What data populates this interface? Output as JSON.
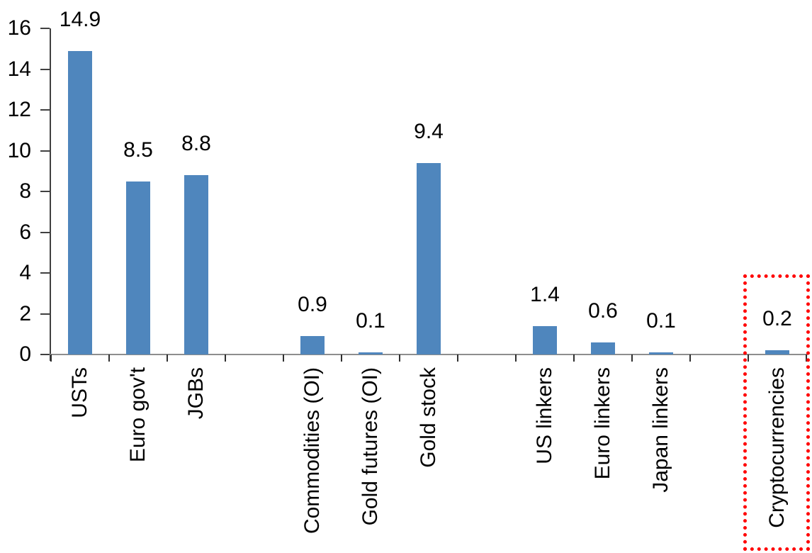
{
  "chart_data": {
    "type": "bar",
    "title": "",
    "xlabel": "",
    "ylabel": "",
    "categories": [
      "USTs",
      "Euro gov't",
      "JGBs",
      "",
      "Commodities (OI)",
      "Gold futures (OI)",
      "Gold stock",
      "",
      "US linkers",
      "Euro linkers",
      "Japan linkers",
      "",
      "Cryptocurrencies"
    ],
    "values": [
      14.9,
      8.5,
      8.8,
      null,
      0.9,
      0.1,
      9.4,
      null,
      1.4,
      0.6,
      0.1,
      null,
      0.2
    ],
    "bar_value_labels": [
      "14.9",
      "8.5",
      "8.8",
      "",
      "0.9",
      "0.1",
      "9.4",
      "",
      "1.4",
      "0.6",
      "0.1",
      "",
      "0.2"
    ],
    "ylim": [
      0,
      16
    ],
    "ytick_step": 2,
    "ytick_labels": [
      "0",
      "2",
      "4",
      "6",
      "8",
      "10",
      "12",
      "14",
      "16"
    ],
    "grid": false,
    "legend": false,
    "bar_color": "#4F86BD",
    "y_axis_color": "#404040",
    "x_axis_color": "#8E8E8E",
    "tick_color": "#303030",
    "text_color": "#000000",
    "highlight": {
      "category": "Cryptocurrencies",
      "shape": "dotted-rectangle",
      "color": "#FF0000"
    }
  }
}
